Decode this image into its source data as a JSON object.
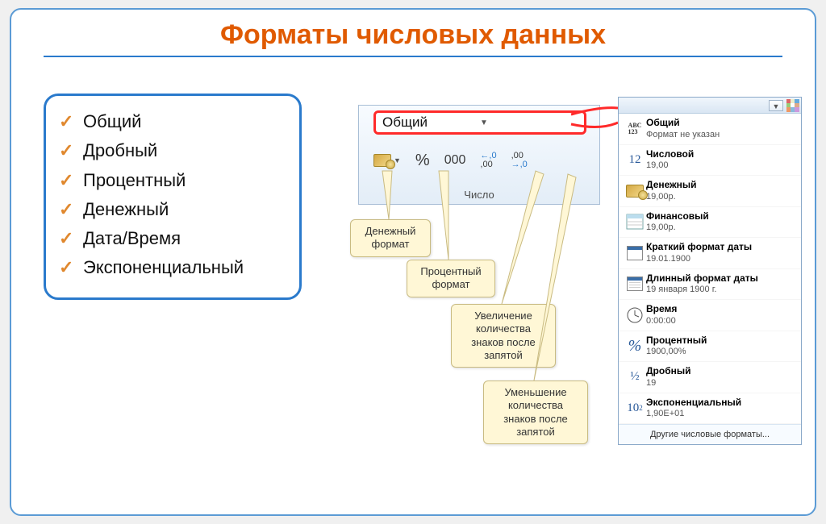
{
  "title": "Форматы числовых данных",
  "colors": {
    "titleColor": "#e05a00",
    "borderBlue": "#2a7acc",
    "slideBorder": "#5b9bd5",
    "checkColor": "#e0882e",
    "calloutBg": "#fff7d6",
    "calloutBorder": "#c9bb82",
    "redOutline": "#ff2a2a",
    "ribbonBgTop": "#f7fbff",
    "ribbonBgBottom": "#e3edf7"
  },
  "formatList": [
    "Общий",
    "Дробный",
    "Процентный",
    "Денежный",
    "Дата/Время",
    "Экспоненциальный"
  ],
  "ribbon": {
    "comboValue": "Общий",
    "groupLabel": "Число",
    "buttons": {
      "currency": "₽",
      "percent": "%",
      "thousands": "000",
      "incDec": "←,0\n,00",
      "decDec": ",00\n→,0"
    }
  },
  "callouts": {
    "c1": "Денежный\nформат",
    "c2": "Процентный\nформат",
    "c3": "Увеличение\nколичества\nзнаков после\nзапятой",
    "c4": "Уменьшение\nколичества\nзнаков после\nзапятой"
  },
  "dropdown": {
    "items": [
      {
        "title": "Общий",
        "sub": "Формат не указан",
        "iconText": "ABC\n123"
      },
      {
        "title": "Числовой",
        "sub": "19,00",
        "iconText": "12"
      },
      {
        "title": "Денежный",
        "sub": "19,00р.",
        "iconType": "money"
      },
      {
        "title": "Финансовый",
        "sub": "19,00р.",
        "iconType": "ledger"
      },
      {
        "title": "Краткий формат даты",
        "sub": "19.01.1900",
        "iconType": "calendar"
      },
      {
        "title": "Длинный формат даты",
        "sub": "19 января 1900 г.",
        "iconType": "calendar-long"
      },
      {
        "title": "Время",
        "sub": "0:00:00",
        "iconType": "clock"
      },
      {
        "title": "Процентный",
        "sub": "1900,00%",
        "iconText": "%"
      },
      {
        "title": "Дробный",
        "sub": "19",
        "iconText": "½"
      },
      {
        "title": "Экспоненциальный",
        "sub": "1,90E+01",
        "iconText": "10²"
      }
    ],
    "footer": "Другие числовые форматы..."
  }
}
